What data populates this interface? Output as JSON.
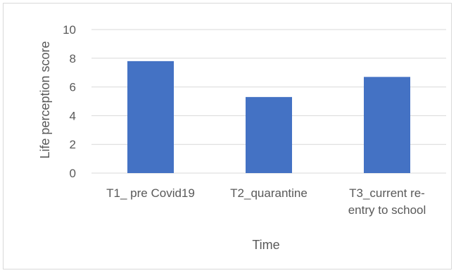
{
  "chart_data": {
    "type": "bar",
    "title": "",
    "xlabel": "Time",
    "ylabel": "Life perception score",
    "categories": [
      [
        "T1_ pre Covid19"
      ],
      [
        "T2_quarantine"
      ],
      [
        "T3_current re-",
        "entry to school"
      ]
    ],
    "values": [
      7.8,
      5.3,
      6.7
    ],
    "ylim": [
      0,
      10
    ],
    "yticks": [
      0,
      2,
      4,
      6,
      8,
      10
    ],
    "grid": true,
    "legend": "none",
    "bar_color": "#4472c4",
    "grid_color": "#d9d9d9"
  }
}
